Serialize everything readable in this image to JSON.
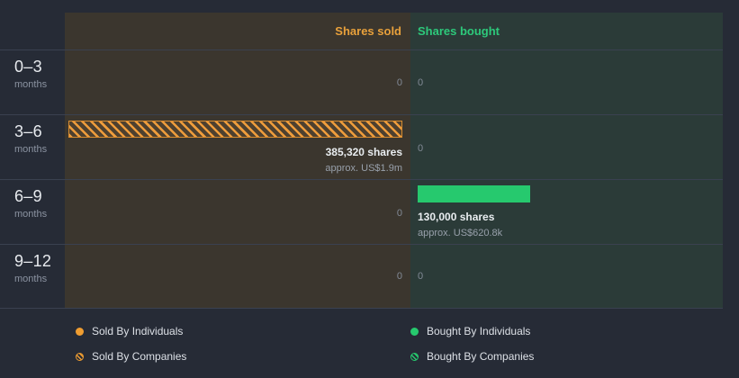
{
  "header": {
    "sold_label": "Shares sold",
    "bought_label": "Shares bought"
  },
  "rows": [
    {
      "period": "0–3",
      "unit": "months",
      "sold": {
        "value": 0,
        "label": "0"
      },
      "bought": {
        "value": 0,
        "label": "0"
      }
    },
    {
      "period": "3–6",
      "unit": "months",
      "sold": {
        "value": 385320,
        "label": "385,320 shares",
        "sublabel": "approx. US$1.9m",
        "style": "hatched"
      },
      "bought": {
        "value": 0,
        "label": "0"
      }
    },
    {
      "period": "6–9",
      "unit": "months",
      "sold": {
        "value": 0,
        "label": "0"
      },
      "bought": {
        "value": 130000,
        "label": "130,000 shares",
        "sublabel": "approx. US$620.8k",
        "style": "solid"
      }
    },
    {
      "period": "9–12",
      "unit": "months",
      "sold": {
        "value": 0,
        "label": "0"
      },
      "bought": {
        "value": 0,
        "label": "0"
      }
    }
  ],
  "legend": {
    "sold_individuals": "Sold By Individuals",
    "sold_companies": "Sold By Companies",
    "bought_individuals": "Bought By Individuals",
    "bought_companies": "Bought By Companies"
  },
  "colors": {
    "sold_accent": "#e9a13b",
    "bought_accent": "#2dc97b",
    "background": "#262b36",
    "sold_panel": "#3b362e",
    "bought_panel": "#2b3b38"
  },
  "chart_data": {
    "type": "bar",
    "orientation": "horizontal",
    "title": "Insider trading volume by period",
    "categories": [
      "0–3 months",
      "3–6 months",
      "6–9 months",
      "9–12 months"
    ],
    "series": [
      {
        "name": "Shares sold",
        "values": [
          0,
          385320,
          0,
          0
        ],
        "approx_usd": [
          null,
          "US$1.9m",
          null,
          null
        ],
        "style": "hatched",
        "color": "#e9a13b"
      },
      {
        "name": "Shares bought",
        "values": [
          0,
          0,
          130000,
          0
        ],
        "approx_usd": [
          null,
          null,
          "US$620.8k",
          null
        ],
        "style": "solid",
        "color": "#2dc97b"
      }
    ],
    "value_labels": [
      "shares"
    ],
    "grid": "horizontal-row-separators",
    "legend_position": "bottom"
  }
}
